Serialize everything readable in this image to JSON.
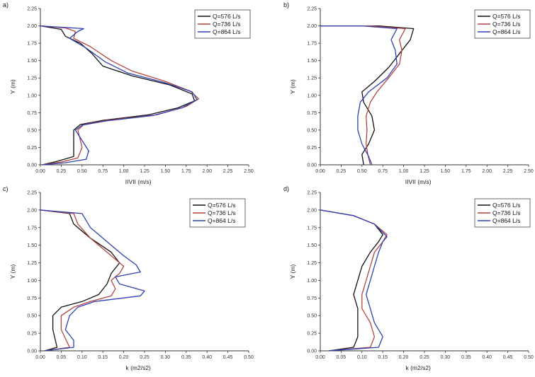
{
  "chart_data": [
    {
      "type": "line",
      "panel_label": "a)",
      "xlabel": "IIVII (m/s)",
      "ylabel": "Y (m)",
      "xlim": [
        0,
        2.5
      ],
      "ylim": [
        0,
        2.25
      ],
      "xticks": [
        "0.00",
        "0.25",
        "0.50",
        "0.75",
        "1.00",
        "1.25",
        "1.50",
        "1.75",
        "2.00",
        "2.25",
        "2.50"
      ],
      "yticks": [
        "0.00",
        "0.25",
        "0.50",
        "0.75",
        "1.00",
        "1.25",
        "1.50",
        "1.75",
        "2.00",
        "2.25"
      ],
      "legend_position": "top-right",
      "series": [
        {
          "name": "Q=576 L/s",
          "color": "#111111",
          "points": [
            [
              0.02,
              0.0
            ],
            [
              0.2,
              0.05
            ],
            [
              0.4,
              0.12
            ],
            [
              0.4,
              0.5
            ],
            [
              0.48,
              0.58
            ],
            [
              0.75,
              0.64
            ],
            [
              1.3,
              0.72
            ],
            [
              1.65,
              0.82
            ],
            [
              1.85,
              0.92
            ],
            [
              1.82,
              1.02
            ],
            [
              1.55,
              1.15
            ],
            [
              1.1,
              1.28
            ],
            [
              0.75,
              1.42
            ],
            [
              0.62,
              1.6
            ],
            [
              0.48,
              1.75
            ],
            [
              0.3,
              1.85
            ],
            [
              0.25,
              1.95
            ],
            [
              0.0,
              2.0
            ]
          ]
        },
        {
          "name": "Q=736 L/s",
          "color": "#b5443f",
          "points": [
            [
              0.02,
              0.0
            ],
            [
              0.25,
              0.04
            ],
            [
              0.45,
              0.1
            ],
            [
              0.5,
              0.25
            ],
            [
              0.45,
              0.5
            ],
            [
              0.52,
              0.58
            ],
            [
              0.8,
              0.64
            ],
            [
              1.4,
              0.72
            ],
            [
              1.75,
              0.84
            ],
            [
              1.9,
              0.95
            ],
            [
              1.8,
              1.06
            ],
            [
              1.5,
              1.2
            ],
            [
              1.1,
              1.35
            ],
            [
              0.85,
              1.5
            ],
            [
              0.6,
              1.7
            ],
            [
              0.4,
              1.82
            ],
            [
              0.42,
              1.92
            ],
            [
              0.3,
              1.97
            ],
            [
              0.0,
              2.0
            ]
          ]
        },
        {
          "name": "Q=864 L/s",
          "color": "#2f3fb5",
          "points": [
            [
              0.02,
              0.0
            ],
            [
              0.3,
              0.03
            ],
            [
              0.55,
              0.08
            ],
            [
              0.58,
              0.2
            ],
            [
              0.42,
              0.5
            ],
            [
              0.5,
              0.57
            ],
            [
              0.78,
              0.63
            ],
            [
              1.35,
              0.71
            ],
            [
              1.7,
              0.82
            ],
            [
              1.88,
              0.94
            ],
            [
              1.82,
              1.05
            ],
            [
              1.5,
              1.18
            ],
            [
              1.05,
              1.32
            ],
            [
              0.78,
              1.48
            ],
            [
              0.55,
              1.68
            ],
            [
              0.35,
              1.82
            ],
            [
              0.45,
              1.92
            ],
            [
              0.52,
              1.96
            ],
            [
              0.0,
              2.0
            ]
          ]
        }
      ]
    },
    {
      "type": "line",
      "panel_label": "b)",
      "xlabel": "IIVII (m/s)",
      "ylabel": "Y (m)",
      "xlim": [
        0,
        2.5
      ],
      "ylim": [
        0,
        2.25
      ],
      "xticks": [
        "0.00",
        "0.25",
        "0.50",
        "0.75",
        "1.00",
        "1.25",
        "1.50",
        "1.75",
        "2.00",
        "2.25",
        "2.50"
      ],
      "yticks": [
        "0.00",
        "0.25",
        "0.50",
        "0.75",
        "1.00",
        "1.25",
        "1.50",
        "1.75",
        "2.00",
        "2.25"
      ],
      "legend_position": "top-right",
      "series": [
        {
          "name": "Q=576 L/s",
          "color": "#111111",
          "points": [
            [
              0.52,
              0.0
            ],
            [
              0.5,
              0.15
            ],
            [
              0.58,
              0.3
            ],
            [
              0.65,
              0.5
            ],
            [
              0.62,
              0.7
            ],
            [
              0.52,
              0.9
            ],
            [
              0.5,
              1.05
            ],
            [
              0.65,
              1.2
            ],
            [
              0.82,
              1.4
            ],
            [
              0.95,
              1.6
            ],
            [
              1.08,
              1.8
            ],
            [
              1.12,
              1.96
            ],
            [
              0.7,
              2.0
            ],
            [
              0.0,
              2.0
            ]
          ]
        },
        {
          "name": "Q=736 L/s",
          "color": "#b5443f",
          "points": [
            [
              0.6,
              0.0
            ],
            [
              0.57,
              0.15
            ],
            [
              0.55,
              0.3
            ],
            [
              0.56,
              0.5
            ],
            [
              0.55,
              0.7
            ],
            [
              0.6,
              0.9
            ],
            [
              0.68,
              1.05
            ],
            [
              0.82,
              1.25
            ],
            [
              0.95,
              1.45
            ],
            [
              0.98,
              1.65
            ],
            [
              0.95,
              1.8
            ],
            [
              1.02,
              1.96
            ],
            [
              0.6,
              2.0
            ],
            [
              0.0,
              2.0
            ]
          ]
        },
        {
          "name": "Q=864 L/s",
          "color": "#2f3fb5",
          "points": [
            [
              0.62,
              0.0
            ],
            [
              0.58,
              0.12
            ],
            [
              0.5,
              0.3
            ],
            [
              0.45,
              0.5
            ],
            [
              0.45,
              0.7
            ],
            [
              0.48,
              0.9
            ],
            [
              0.58,
              1.05
            ],
            [
              0.8,
              1.25
            ],
            [
              0.92,
              1.45
            ],
            [
              0.9,
              1.65
            ],
            [
              0.85,
              1.8
            ],
            [
              0.92,
              1.96
            ],
            [
              0.5,
              2.0
            ],
            [
              0.0,
              2.0
            ]
          ]
        }
      ]
    },
    {
      "type": "line",
      "panel_label": "c)",
      "xlabel": "k (m2/s2)",
      "ylabel": "Y (m)",
      "xlim": [
        0,
        0.5
      ],
      "ylim": [
        0,
        2.25
      ],
      "xticks": [
        "0.00",
        "0.05",
        "0.10",
        "0.15",
        "0.20",
        "0.25",
        "0.30",
        "0.35",
        "0.40",
        "0.45",
        "0.50"
      ],
      "yticks": [
        "0.00",
        "0.25",
        "0.50",
        "0.75",
        "1.00",
        "1.25",
        "1.50",
        "1.75",
        "2.00",
        "2.25"
      ],
      "legend_position": "top-right",
      "series": [
        {
          "name": "Q=576 L/s",
          "color": "#111111",
          "points": [
            [
              0.01,
              0.0
            ],
            [
              0.04,
              0.05
            ],
            [
              0.03,
              0.3
            ],
            [
              0.03,
              0.5
            ],
            [
              0.05,
              0.62
            ],
            [
              0.1,
              0.7
            ],
            [
              0.14,
              0.8
            ],
            [
              0.16,
              0.95
            ],
            [
              0.17,
              1.1
            ],
            [
              0.19,
              1.25
            ],
            [
              0.17,
              1.4
            ],
            [
              0.12,
              1.6
            ],
            [
              0.08,
              1.8
            ],
            [
              0.07,
              1.95
            ],
            [
              0.0,
              2.0
            ]
          ]
        },
        {
          "name": "Q=736 L/s",
          "color": "#b5443f",
          "points": [
            [
              0.01,
              0.0
            ],
            [
              0.07,
              0.05
            ],
            [
              0.05,
              0.3
            ],
            [
              0.05,
              0.5
            ],
            [
              0.08,
              0.62
            ],
            [
              0.12,
              0.7
            ],
            [
              0.17,
              0.78
            ],
            [
              0.18,
              0.88
            ],
            [
              0.17,
              1.0
            ],
            [
              0.19,
              1.1
            ],
            [
              0.2,
              1.2
            ],
            [
              0.16,
              1.4
            ],
            [
              0.12,
              1.6
            ],
            [
              0.09,
              1.8
            ],
            [
              0.08,
              1.95
            ],
            [
              0.0,
              2.0
            ]
          ]
        },
        {
          "name": "Q=864 L/s",
          "color": "#2f3fb5",
          "points": [
            [
              0.01,
              0.0
            ],
            [
              0.08,
              0.05
            ],
            [
              0.08,
              0.15
            ],
            [
              0.06,
              0.3
            ],
            [
              0.07,
              0.5
            ],
            [
              0.09,
              0.62
            ],
            [
              0.13,
              0.7
            ],
            [
              0.24,
              0.78
            ],
            [
              0.25,
              0.85
            ],
            [
              0.19,
              0.95
            ],
            [
              0.18,
              1.05
            ],
            [
              0.24,
              1.12
            ],
            [
              0.23,
              1.22
            ],
            [
              0.2,
              1.35
            ],
            [
              0.16,
              1.55
            ],
            [
              0.12,
              1.75
            ],
            [
              0.1,
              1.95
            ],
            [
              0.0,
              2.0
            ]
          ]
        }
      ]
    },
    {
      "type": "line",
      "panel_label": "d)",
      "xlabel": "k (m2/s2)",
      "ylabel": "Y (m)",
      "xlim": [
        0,
        0.5
      ],
      "ylim": [
        0,
        2.25
      ],
      "xticks": [
        "0.00",
        "0.05",
        "0.10",
        "0.15",
        "0.20",
        "0.25",
        "0.30",
        "0.35",
        "0.40",
        "0.45",
        "0.50"
      ],
      "yticks": [
        "0.00",
        "0.25",
        "0.50",
        "0.75",
        "1.00",
        "1.25",
        "1.50",
        "1.75",
        "2.00",
        "2.25"
      ],
      "legend_position": "top-right",
      "series": [
        {
          "name": "Q=576 L/s",
          "color": "#111111",
          "points": [
            [
              0.02,
              0.0
            ],
            [
              0.08,
              0.05
            ],
            [
              0.09,
              0.2
            ],
            [
              0.09,
              0.4
            ],
            [
              0.09,
              0.6
            ],
            [
              0.08,
              0.8
            ],
            [
              0.09,
              1.0
            ],
            [
              0.1,
              1.2
            ],
            [
              0.12,
              1.4
            ],
            [
              0.14,
              1.55
            ],
            [
              0.15,
              1.65
            ],
            [
              0.13,
              1.8
            ],
            [
              0.08,
              1.92
            ],
            [
              0.0,
              2.0
            ]
          ]
        },
        {
          "name": "Q=736 L/s",
          "color": "#b5443f",
          "points": [
            [
              0.02,
              0.0
            ],
            [
              0.12,
              0.05
            ],
            [
              0.13,
              0.2
            ],
            [
              0.12,
              0.4
            ],
            [
              0.1,
              0.6
            ],
            [
              0.1,
              0.8
            ],
            [
              0.11,
              1.0
            ],
            [
              0.12,
              1.2
            ],
            [
              0.13,
              1.4
            ],
            [
              0.15,
              1.55
            ],
            [
              0.16,
              1.65
            ],
            [
              0.13,
              1.8
            ],
            [
              0.08,
              1.92
            ],
            [
              0.0,
              2.0
            ]
          ]
        },
        {
          "name": "Q=864 L/s",
          "color": "#2f3fb5",
          "points": [
            [
              0.02,
              0.0
            ],
            [
              0.14,
              0.05
            ],
            [
              0.15,
              0.2
            ],
            [
              0.13,
              0.4
            ],
            [
              0.12,
              0.6
            ],
            [
              0.11,
              0.8
            ],
            [
              0.12,
              1.0
            ],
            [
              0.13,
              1.2
            ],
            [
              0.14,
              1.4
            ],
            [
              0.15,
              1.55
            ],
            [
              0.16,
              1.62
            ],
            [
              0.13,
              1.8
            ],
            [
              0.08,
              1.92
            ],
            [
              0.0,
              2.0
            ]
          ]
        }
      ]
    }
  ]
}
